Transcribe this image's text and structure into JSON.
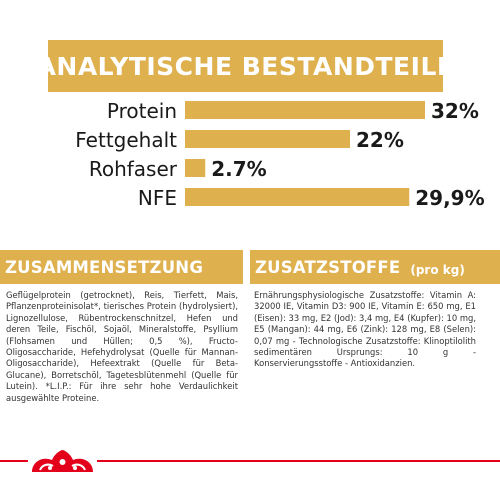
{
  "header": {
    "title": "ANALYTISCHE BESTANDTEILE"
  },
  "chart_data": {
    "type": "bar",
    "orientation": "horizontal",
    "categories": [
      "Protein",
      "Fettgehalt",
      "Rohfaser",
      "NFE"
    ],
    "values": [
      32,
      22,
      2.7,
      29.9
    ],
    "value_labels": [
      "32%",
      "22%",
      "2.7%",
      "29,9%"
    ],
    "unit": "%",
    "bar_color": "#dfb04e",
    "xlim": [
      0,
      32
    ],
    "grid": false,
    "legend": "none"
  },
  "composition": {
    "title": "ZUSAMMENSETZUNG",
    "text": "Geflügelprotein (getrocknet), Reis, Tierfett, Mais, Pflanzenproteinisolat*, tierisches Protein (hydrolysiert), Lignozellulose, Rübentrockenschnitzel, Hefen und deren Teile, Fischöl, Sojaöl, Mineralstoffe, Psyllium (Flohsamen und Hüllen; 0,5 %), Fructo-Oligosaccharide, Hefehydrolysat (Quelle für Mannan-Oligosaccharide), Hefeextrakt (Quelle für Beta-Glucane), Borretschöl, Tagetesblütenmehl (Quelle für Lutein). *L.I.P.: Für ihre sehr hohe Verdaulichkeit ausgewählte Proteine."
  },
  "additives": {
    "title": "ZUSATZSTOFFE",
    "subtitle": "(pro kg)",
    "text": "Ernährungsphysiologische Zusatzstoffe: Vitamin A: 32000 IE, Vitamin D3: 900 IE, Vitamin E: 650 mg, E1 (Eisen): 33 mg, E2 (Jod): 3,4 mg, E4 (Kupfer): 10 mg, E5 (Mangan): 44 mg, E6 (Zink): 128 mg, E8 (Selen): 0,07 mg - Technologische Zusatzstoffe: Klinoptilolith sedimentären Ursprungs: 10 g - Konservierungsstoffe - Antioxidanzien."
  },
  "colors": {
    "accent": "#dfb04e",
    "brand_red": "#e2001a"
  },
  "icons": {
    "footer": "royal-canin-crown-icon"
  }
}
